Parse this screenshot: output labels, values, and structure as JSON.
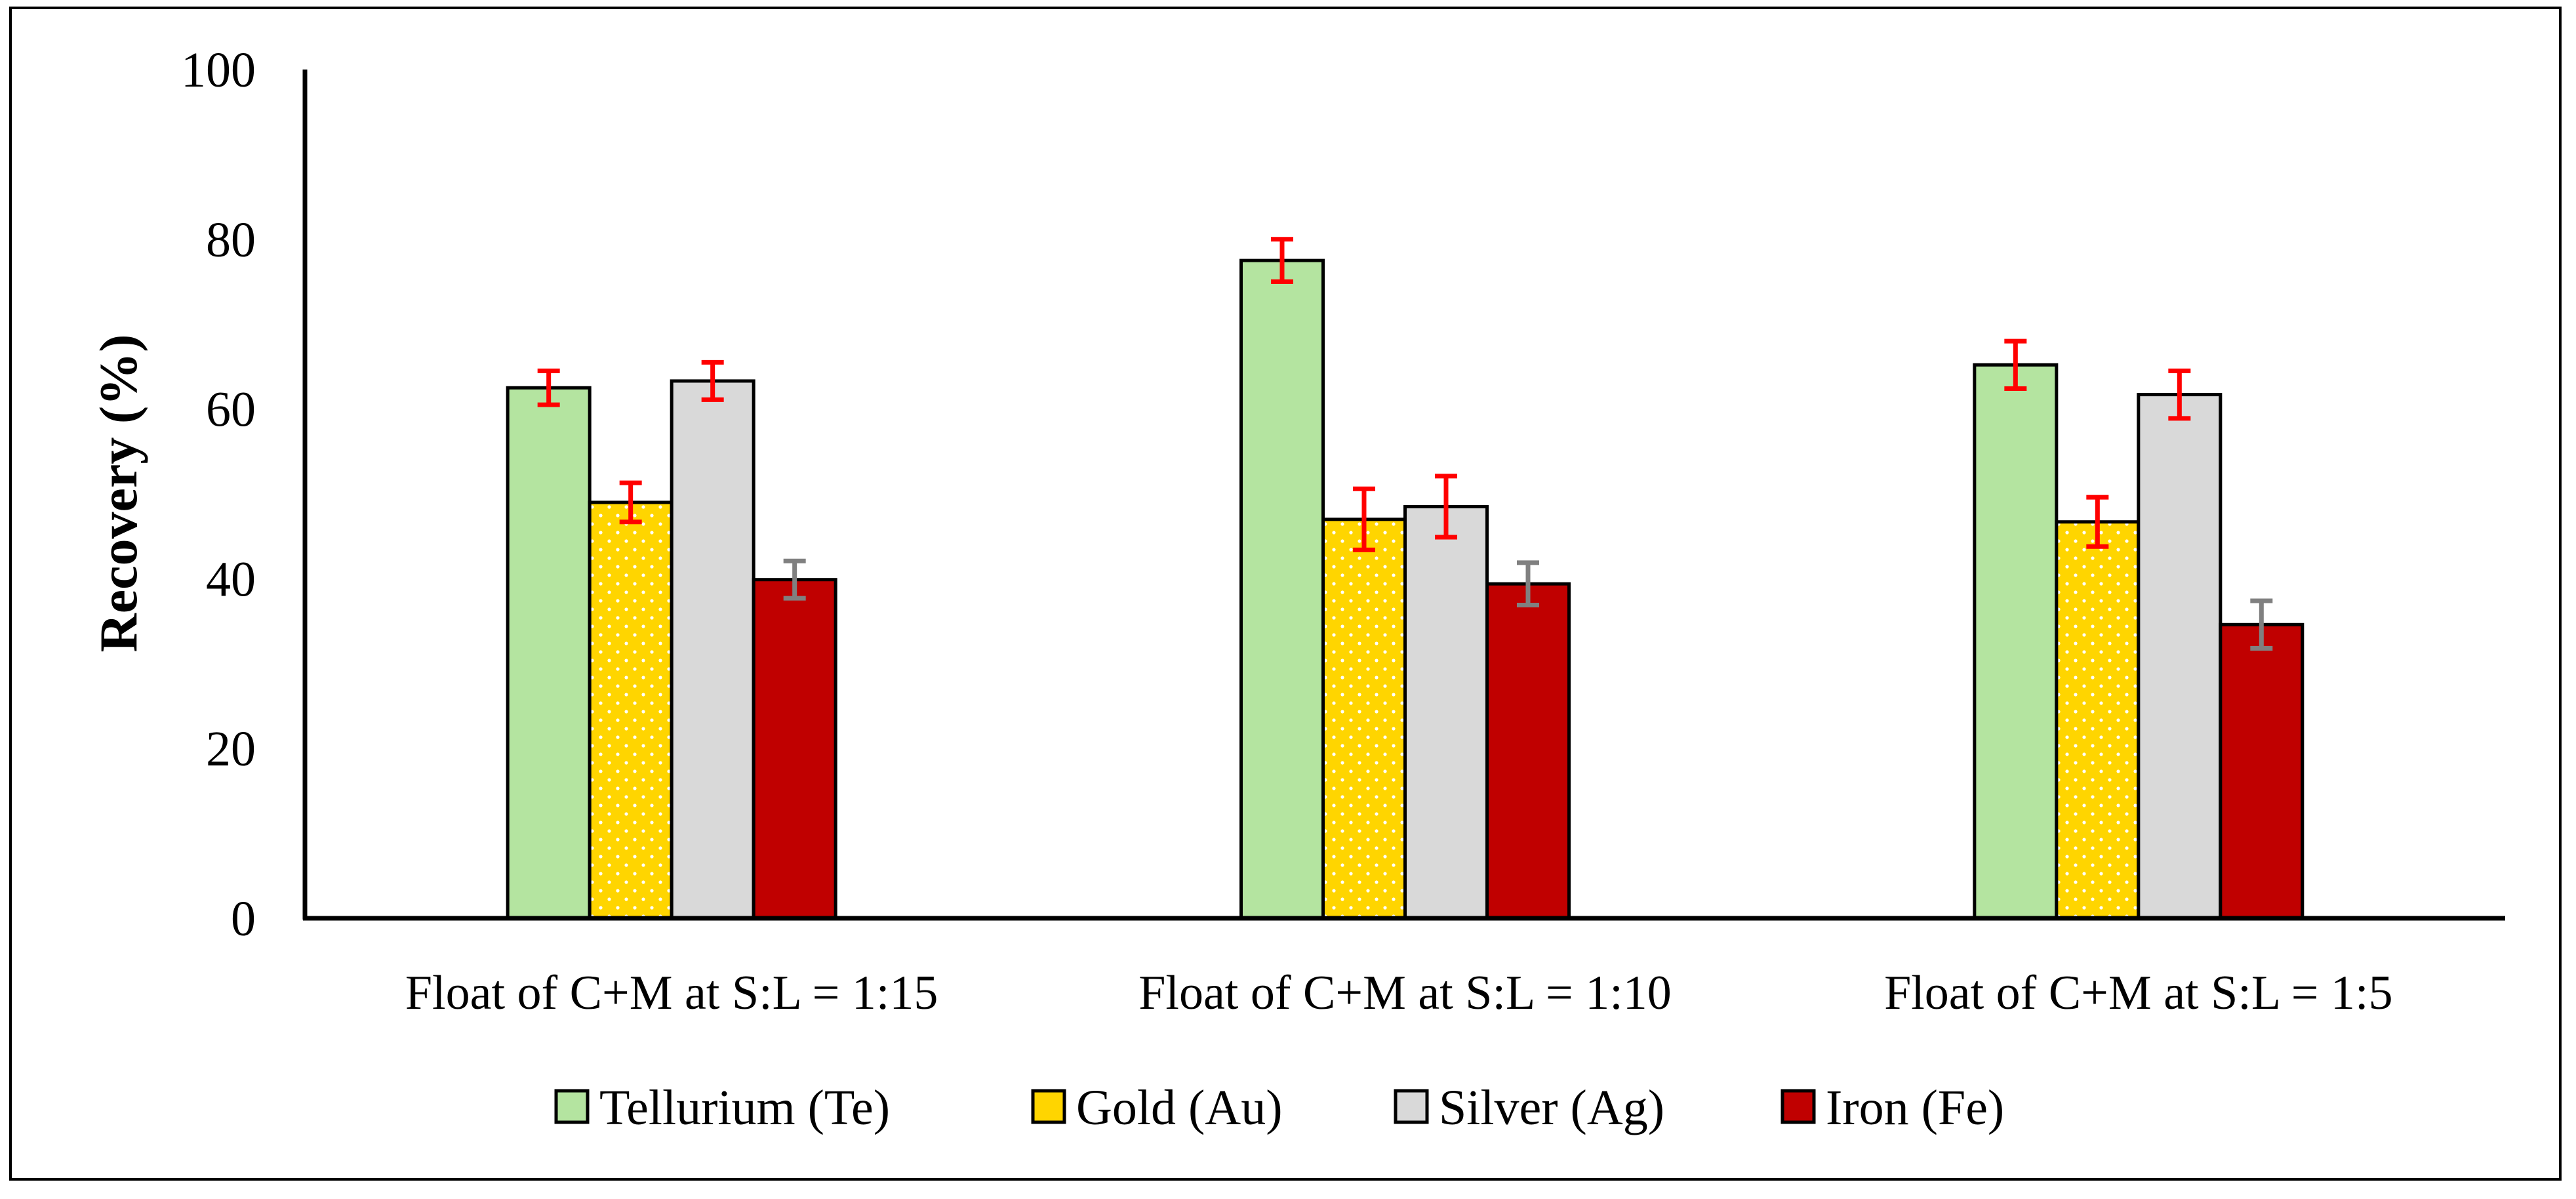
{
  "chart_data": {
    "type": "bar",
    "title": "",
    "xlabel": "",
    "ylabel": "Recovery (%)",
    "ylim": [
      0,
      100
    ],
    "yticks": [
      0,
      20,
      40,
      60,
      80,
      100
    ],
    "grid": false,
    "legend_position": "bottom",
    "categories": [
      "Float of C+M at S:L = 1:15",
      "Float of C+M at S:L = 1:10",
      "Float of C+M at S:L = 1:5"
    ],
    "series": [
      {
        "name": "Tellurium (Te)",
        "color": "#b4e4a0",
        "pattern": "solid",
        "values": [
          62.5,
          77.5,
          65.2
        ],
        "errors": [
          2.0,
          2.5,
          2.8
        ],
        "error_color": "#ff0000"
      },
      {
        "name": "Gold (Au)",
        "color": "#ffd500",
        "pattern": "dotted",
        "values": [
          49.0,
          47.0,
          46.7
        ],
        "errors": [
          2.3,
          3.6,
          2.9
        ],
        "error_color": "#ff0000"
      },
      {
        "name": "Silver (Ag)",
        "color": "#d9d9d9",
        "pattern": "solid",
        "values": [
          63.3,
          48.5,
          61.7
        ],
        "errors": [
          2.2,
          3.6,
          2.8
        ],
        "error_color": "#ff0000"
      },
      {
        "name": "Iron (Fe)",
        "color": "#c00000",
        "pattern": "solid",
        "values": [
          39.9,
          39.4,
          34.6
        ],
        "errors": [
          2.2,
          2.5,
          2.8
        ],
        "error_color": "#808080"
      }
    ]
  }
}
